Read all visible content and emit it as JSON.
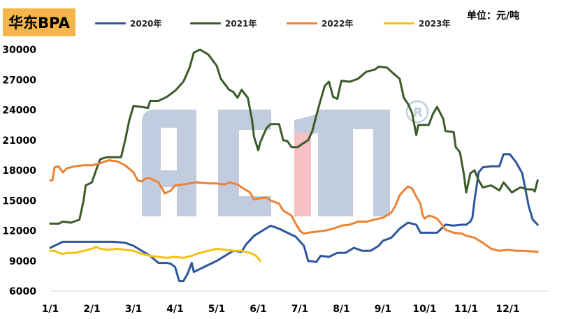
{
  "chart_data": {
    "type": "line",
    "title": "华东BPA",
    "unit_label": "单位：元/吨",
    "watermark": "ACMI",
    "xlim": [
      1,
      13
    ],
    "ylim": [
      6000,
      30000
    ],
    "yticks": [
      6000,
      9000,
      12000,
      15000,
      18000,
      21000,
      24000,
      27000,
      30000
    ],
    "xticks": [
      {
        "label": "1/1",
        "x": 1
      },
      {
        "label": "2/1",
        "x": 2
      },
      {
        "label": "3/1",
        "x": 3
      },
      {
        "label": "4/1",
        "x": 4
      },
      {
        "label": "5/1",
        "x": 5
      },
      {
        "label": "6/1",
        "x": 6
      },
      {
        "label": "7/1",
        "x": 7
      },
      {
        "label": "8/1",
        "x": 8
      },
      {
        "label": "9/1",
        "x": 9
      },
      {
        "label": "10/1",
        "x": 10
      },
      {
        "label": "11/1",
        "x": 11
      },
      {
        "label": "12/1",
        "x": 12
      }
    ],
    "legend_position": "top",
    "series": [
      {
        "name": "2020年",
        "color": "#2f559b",
        "points": [
          [
            1.0,
            10300
          ],
          [
            1.1,
            10500
          ],
          [
            1.3,
            10900
          ],
          [
            1.6,
            10900
          ],
          [
            1.9,
            10900
          ],
          [
            2.2,
            10900
          ],
          [
            2.5,
            10900
          ],
          [
            2.8,
            10800
          ],
          [
            3.0,
            10500
          ],
          [
            3.2,
            10000
          ],
          [
            3.4,
            9500
          ],
          [
            3.6,
            8800
          ],
          [
            3.8,
            8800
          ],
          [
            3.9,
            8700
          ],
          [
            4.0,
            8400
          ],
          [
            4.1,
            7000
          ],
          [
            4.2,
            7000
          ],
          [
            4.3,
            7700
          ],
          [
            4.4,
            8800
          ],
          [
            4.45,
            7900
          ],
          [
            4.6,
            8200
          ],
          [
            4.8,
            8600
          ],
          [
            5.0,
            9000
          ],
          [
            5.2,
            9500
          ],
          [
            5.4,
            10000
          ],
          [
            5.6,
            9900
          ],
          [
            5.7,
            10600
          ],
          [
            5.9,
            11500
          ],
          [
            6.1,
            12000
          ],
          [
            6.3,
            12500
          ],
          [
            6.5,
            12200
          ],
          [
            6.7,
            11800
          ],
          [
            6.9,
            11400
          ],
          [
            7.1,
            10500
          ],
          [
            7.2,
            9000
          ],
          [
            7.4,
            8900
          ],
          [
            7.5,
            9500
          ],
          [
            7.7,
            9400
          ],
          [
            7.9,
            9800
          ],
          [
            8.1,
            9800
          ],
          [
            8.3,
            10300
          ],
          [
            8.5,
            10000
          ],
          [
            8.7,
            10000
          ],
          [
            8.9,
            10500
          ],
          [
            9.0,
            11000
          ],
          [
            9.2,
            11300
          ],
          [
            9.4,
            12200
          ],
          [
            9.6,
            12800
          ],
          [
            9.8,
            12600
          ],
          [
            9.9,
            11800
          ],
          [
            10.1,
            11800
          ],
          [
            10.3,
            11800
          ],
          [
            10.5,
            12600
          ],
          [
            10.7,
            12500
          ],
          [
            10.9,
            12600
          ],
          [
            11.0,
            12600
          ],
          [
            11.1,
            12900
          ],
          [
            11.15,
            13300
          ],
          [
            11.2,
            15000
          ],
          [
            11.3,
            17800
          ],
          [
            11.4,
            18300
          ],
          [
            11.6,
            18400
          ],
          [
            11.8,
            18400
          ],
          [
            11.9,
            19600
          ],
          [
            12.05,
            19600
          ],
          [
            12.2,
            18800
          ],
          [
            12.35,
            17700
          ],
          [
            12.5,
            14500
          ],
          [
            12.6,
            13100
          ],
          [
            12.72,
            12600
          ]
        ]
      },
      {
        "name": "2021年",
        "color": "#3b5b2a",
        "points": [
          [
            1.0,
            12700
          ],
          [
            1.2,
            12700
          ],
          [
            1.3,
            12900
          ],
          [
            1.5,
            12800
          ],
          [
            1.7,
            13100
          ],
          [
            1.8,
            15000
          ],
          [
            1.85,
            16500
          ],
          [
            2.0,
            16800
          ],
          [
            2.1,
            18000
          ],
          [
            2.2,
            19100
          ],
          [
            2.35,
            19300
          ],
          [
            2.7,
            19300
          ],
          [
            2.8,
            21000
          ],
          [
            2.9,
            23000
          ],
          [
            3.0,
            24400
          ],
          [
            3.2,
            24300
          ],
          [
            3.35,
            24200
          ],
          [
            3.4,
            24900
          ],
          [
            3.6,
            24900
          ],
          [
            3.8,
            25300
          ],
          [
            4.0,
            25900
          ],
          [
            4.2,
            26800
          ],
          [
            4.35,
            28200
          ],
          [
            4.45,
            29700
          ],
          [
            4.6,
            30000
          ],
          [
            4.8,
            29500
          ],
          [
            5.0,
            28400
          ],
          [
            5.1,
            27100
          ],
          [
            5.3,
            26000
          ],
          [
            5.4,
            25800
          ],
          [
            5.5,
            25200
          ],
          [
            5.6,
            26000
          ],
          [
            5.75,
            25200
          ],
          [
            5.85,
            23000
          ],
          [
            5.9,
            21300
          ],
          [
            6.0,
            20000
          ],
          [
            6.05,
            20800
          ],
          [
            6.2,
            22200
          ],
          [
            6.3,
            22600
          ],
          [
            6.5,
            22600
          ],
          [
            6.6,
            21000
          ],
          [
            6.7,
            20900
          ],
          [
            6.8,
            20300
          ],
          [
            6.95,
            20300
          ],
          [
            7.05,
            20600
          ],
          [
            7.2,
            21000
          ],
          [
            7.3,
            21900
          ],
          [
            7.4,
            23500
          ],
          [
            7.5,
            25000
          ],
          [
            7.6,
            26400
          ],
          [
            7.7,
            26800
          ],
          [
            7.8,
            25300
          ],
          [
            7.9,
            25100
          ],
          [
            8.0,
            26900
          ],
          [
            8.2,
            26800
          ],
          [
            8.4,
            27100
          ],
          [
            8.6,
            27800
          ],
          [
            8.8,
            28000
          ],
          [
            8.9,
            28300
          ],
          [
            9.1,
            28200
          ],
          [
            9.2,
            27800
          ],
          [
            9.4,
            27100
          ],
          [
            9.5,
            25200
          ],
          [
            9.6,
            24600
          ],
          [
            9.7,
            23700
          ],
          [
            9.8,
            21500
          ],
          [
            9.85,
            22500
          ],
          [
            10.0,
            22500
          ],
          [
            10.1,
            22500
          ],
          [
            10.2,
            23600
          ],
          [
            10.3,
            24300
          ],
          [
            10.45,
            23100
          ],
          [
            10.5,
            21900
          ],
          [
            10.7,
            21800
          ],
          [
            10.75,
            20300
          ],
          [
            10.85,
            19800
          ],
          [
            10.95,
            17500
          ],
          [
            11.0,
            15800
          ],
          [
            11.1,
            17700
          ],
          [
            11.2,
            18000
          ],
          [
            11.3,
            17000
          ],
          [
            11.4,
            16300
          ],
          [
            11.6,
            16500
          ],
          [
            11.8,
            16000
          ],
          [
            11.9,
            16800
          ],
          [
            12.0,
            16300
          ],
          [
            12.1,
            15800
          ],
          [
            12.3,
            16300
          ],
          [
            12.5,
            16100
          ],
          [
            12.6,
            16100
          ],
          [
            12.65,
            15900
          ],
          [
            12.72,
            17000
          ]
        ]
      },
      {
        "name": "2022年",
        "color": "#ec8234",
        "points": [
          [
            1.0,
            17000
          ],
          [
            1.05,
            17000
          ],
          [
            1.1,
            18300
          ],
          [
            1.2,
            18400
          ],
          [
            1.3,
            17800
          ],
          [
            1.4,
            18200
          ],
          [
            1.6,
            18400
          ],
          [
            1.8,
            18500
          ],
          [
            2.0,
            18500
          ],
          [
            2.2,
            18700
          ],
          [
            2.4,
            19000
          ],
          [
            2.6,
            18900
          ],
          [
            2.8,
            18500
          ],
          [
            3.0,
            17800
          ],
          [
            3.1,
            17000
          ],
          [
            3.2,
            16900
          ],
          [
            3.3,
            17200
          ],
          [
            3.4,
            17200
          ],
          [
            3.5,
            17000
          ],
          [
            3.6,
            16800
          ],
          [
            3.7,
            16100
          ],
          [
            3.75,
            15700
          ],
          [
            3.9,
            16000
          ],
          [
            4.0,
            16500
          ],
          [
            4.2,
            16600
          ],
          [
            4.5,
            16800
          ],
          [
            4.8,
            16700
          ],
          [
            5.0,
            16700
          ],
          [
            5.2,
            16600
          ],
          [
            5.3,
            16800
          ],
          [
            5.5,
            16600
          ],
          [
            5.6,
            16300
          ],
          [
            5.8,
            15800
          ],
          [
            5.9,
            15100
          ],
          [
            6.0,
            15200
          ],
          [
            6.2,
            15300
          ],
          [
            6.3,
            15000
          ],
          [
            6.5,
            14700
          ],
          [
            6.6,
            14000
          ],
          [
            6.8,
            13500
          ],
          [
            6.9,
            12700
          ],
          [
            7.0,
            12000
          ],
          [
            7.1,
            11700
          ],
          [
            7.2,
            11800
          ],
          [
            7.4,
            11900
          ],
          [
            7.6,
            12000
          ],
          [
            7.8,
            12200
          ],
          [
            8.0,
            12500
          ],
          [
            8.2,
            12600
          ],
          [
            8.4,
            12900
          ],
          [
            8.6,
            12900
          ],
          [
            8.8,
            13100
          ],
          [
            9.0,
            13300
          ],
          [
            9.2,
            13800
          ],
          [
            9.3,
            14500
          ],
          [
            9.4,
            15500
          ],
          [
            9.5,
            16000
          ],
          [
            9.6,
            16400
          ],
          [
            9.7,
            16200
          ],
          [
            9.8,
            15400
          ],
          [
            9.9,
            14700
          ],
          [
            9.95,
            13600
          ],
          [
            10.0,
            13200
          ],
          [
            10.1,
            13500
          ],
          [
            10.2,
            13400
          ],
          [
            10.3,
            13200
          ],
          [
            10.4,
            12700
          ],
          [
            10.5,
            12100
          ],
          [
            10.7,
            11800
          ],
          [
            10.9,
            11700
          ],
          [
            11.0,
            11500
          ],
          [
            11.2,
            11300
          ],
          [
            11.4,
            10800
          ],
          [
            11.6,
            10200
          ],
          [
            11.8,
            10000
          ],
          [
            12.0,
            10100
          ],
          [
            12.2,
            10000
          ],
          [
            12.4,
            10000
          ],
          [
            12.72,
            9900
          ]
        ]
      },
      {
        "name": "2023年",
        "color": "#f4c20d",
        "points": [
          [
            1.0,
            10000
          ],
          [
            1.1,
            10000
          ],
          [
            1.2,
            9800
          ],
          [
            1.3,
            9700
          ],
          [
            1.4,
            9800
          ],
          [
            1.6,
            9800
          ],
          [
            1.8,
            10000
          ],
          [
            2.0,
            10200
          ],
          [
            2.1,
            10400
          ],
          [
            2.2,
            10200
          ],
          [
            2.4,
            10100
          ],
          [
            2.6,
            10200
          ],
          [
            2.8,
            10100
          ],
          [
            3.0,
            10000
          ],
          [
            3.2,
            9700
          ],
          [
            3.4,
            9500
          ],
          [
            3.6,
            9400
          ],
          [
            3.8,
            9300
          ],
          [
            4.0,
            9400
          ],
          [
            4.2,
            9300
          ],
          [
            4.4,
            9500
          ],
          [
            4.6,
            9800
          ],
          [
            4.8,
            10000
          ],
          [
            5.0,
            10200
          ],
          [
            5.2,
            10100
          ],
          [
            5.4,
            10000
          ],
          [
            5.6,
            10000
          ],
          [
            5.8,
            9800
          ],
          [
            5.95,
            9500
          ],
          [
            6.05,
            9000
          ]
        ]
      }
    ]
  }
}
